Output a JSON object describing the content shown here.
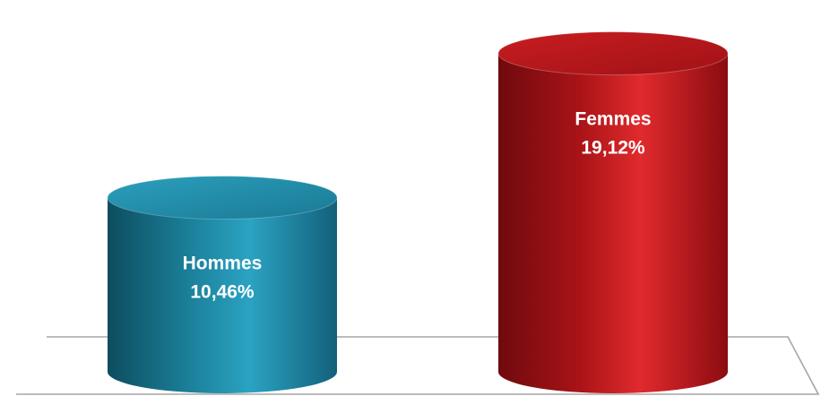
{
  "chart_data": {
    "type": "bar",
    "style": "3d-cylinder",
    "categories": [
      "Hommes",
      "Femmes"
    ],
    "values": [
      10.46,
      19.12
    ],
    "value_labels": [
      "10,46%",
      "19,12%"
    ],
    "colors": [
      "#1e8aa6",
      "#c0161b"
    ],
    "ylim": [
      0,
      20.5
    ],
    "grid": false,
    "legend": "none"
  }
}
